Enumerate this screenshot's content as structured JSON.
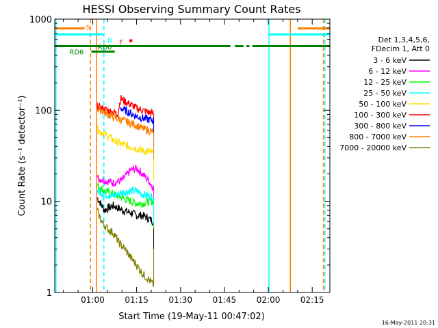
{
  "chart_data": {
    "type": "line",
    "title": "HESSI Observing Summary Count Rates",
    "xlabel": "Start Time (19-May-11 00:47:02)",
    "ylabel": "Count Rate (s⁻¹ detector⁻¹)",
    "yscale": "log",
    "ylim": [
      1,
      1000
    ],
    "xlim_minutes": [
      0,
      94
    ],
    "x_ticks": [
      {
        "label": "01:00",
        "minute": 12.97
      },
      {
        "label": "01:15",
        "minute": 27.97
      },
      {
        "label": "01:30",
        "minute": 42.97
      },
      {
        "label": "01:45",
        "minute": 57.97
      },
      {
        "label": "02:00",
        "minute": 72.97
      },
      {
        "label": "02:15",
        "minute": 87.97
      }
    ],
    "y_ticks": [
      {
        "label": "1",
        "value": 1
      },
      {
        "label": "10",
        "value": 10
      },
      {
        "label": "100",
        "value": 100
      },
      {
        "label": "1000",
        "value": 1000
      }
    ],
    "legend_title": [
      "Det 1,3,4,5,6,",
      "FDecim 1, Att 0"
    ],
    "legend_position": "right",
    "series": [
      {
        "name": "3 - 6 keV",
        "color": "#000000",
        "points": [
          [
            14.5,
            11
          ],
          [
            17,
            8
          ],
          [
            20,
            9
          ],
          [
            23,
            8
          ],
          [
            26,
            7.5
          ],
          [
            28,
            7
          ],
          [
            30,
            7
          ],
          [
            32,
            6.5
          ],
          [
            33.8,
            6
          ]
        ]
      },
      {
        "name": "6 - 12 keV",
        "color": "#ff00ff",
        "points": [
          [
            14.5,
            18
          ],
          [
            17,
            17
          ],
          [
            20,
            16
          ],
          [
            23,
            17
          ],
          [
            26,
            22
          ],
          [
            28,
            23
          ],
          [
            30,
            20
          ],
          [
            32,
            17
          ],
          [
            33.8,
            14
          ]
        ]
      },
      {
        "name": "12 - 25 keV",
        "color": "#00ff00",
        "points": [
          [
            14.5,
            15
          ],
          [
            17,
            13
          ],
          [
            20,
            12
          ],
          [
            23,
            11
          ],
          [
            26,
            10
          ],
          [
            28,
            9.5
          ],
          [
            30,
            9.5
          ],
          [
            32,
            10
          ],
          [
            33.8,
            10
          ]
        ]
      },
      {
        "name": "25 - 50 keV",
        "color": "#00ffff",
        "points": [
          [
            14.5,
            13
          ],
          [
            17,
            12
          ],
          [
            20,
            11.5
          ],
          [
            23,
            12.5
          ],
          [
            26,
            13
          ],
          [
            28,
            13
          ],
          [
            30,
            12
          ],
          [
            32,
            11.5
          ],
          [
            33.8,
            11
          ]
        ]
      },
      {
        "name": "50 - 100 keV",
        "color": "#ffdd00",
        "points": [
          [
            14.5,
            62
          ],
          [
            17,
            55
          ],
          [
            20,
            47
          ],
          [
            23,
            42
          ],
          [
            26,
            40
          ],
          [
            28,
            38
          ],
          [
            30,
            36
          ],
          [
            32,
            35
          ],
          [
            33.8,
            34
          ]
        ]
      },
      {
        "name": "100 - 300 keV",
        "color": "#ff0000",
        "points": [
          [
            14.5,
            110
          ],
          [
            17,
            102
          ],
          [
            20,
            95
          ],
          [
            21.5,
            92
          ],
          [
            22.5,
            135
          ],
          [
            24,
            125
          ],
          [
            26,
            115
          ],
          [
            28,
            105
          ],
          [
            30,
            100
          ],
          [
            32,
            95
          ],
          [
            33.8,
            92
          ]
        ]
      },
      {
        "name": "300 - 800 keV",
        "color": "#0000ff",
        "points": [
          [
            22.5,
            105
          ],
          [
            24,
            100
          ],
          [
            26,
            92
          ],
          [
            28,
            86
          ],
          [
            30,
            82
          ],
          [
            32,
            79
          ],
          [
            33.8,
            77
          ]
        ]
      },
      {
        "name": "800 - 7000 keV",
        "color": "#ff7f00",
        "points": [
          [
            14.5,
            105
          ],
          [
            17,
            95
          ],
          [
            20,
            84
          ],
          [
            23,
            78
          ],
          [
            26,
            72
          ],
          [
            28,
            68
          ],
          [
            30,
            63
          ],
          [
            32,
            60
          ],
          [
            33.8,
            58
          ]
        ]
      },
      {
        "name": "7000 - 20000 keV",
        "color": "#808000",
        "points": [
          [
            14.5,
            8
          ],
          [
            16,
            6
          ],
          [
            18,
            5
          ],
          [
            20,
            4.5
          ],
          [
            22,
            3.5
          ],
          [
            24,
            3
          ],
          [
            26,
            2.4
          ],
          [
            28,
            2
          ],
          [
            30,
            1.6
          ],
          [
            32,
            1.4
          ],
          [
            33.8,
            1.2
          ]
        ]
      }
    ],
    "flags": [
      {
        "label": "S",
        "color": "#ff7f00",
        "y_value": 790,
        "segments": [
          [
            0,
            10.2
          ],
          [
            83,
            94
          ]
        ]
      },
      {
        "label": "N",
        "color": "#00ffff",
        "y_value": 680,
        "segments": [
          [
            0,
            16.5
          ],
          [
            73.2,
            94
          ]
        ]
      },
      {
        "label": "F",
        "color": "#ff0000",
        "y_value": 580,
        "segments": [
          [
            25.5,
            26.5
          ]
        ]
      },
      {
        "label": "RD0",
        "color": "#008000",
        "y_value": 505,
        "segments": [
          [
            0,
            60
          ],
          [
            61.5,
            64.5
          ],
          [
            65.5,
            66.5
          ],
          [
            67.5,
            94
          ]
        ]
      },
      {
        "label": "RD6",
        "color": "#008000",
        "y_value": 440,
        "segments": [
          [
            12.5,
            20.5
          ]
        ]
      }
    ],
    "vertical_markers": [
      {
        "color": "#00ffff",
        "style": "solid",
        "minute": 0.4
      },
      {
        "color": "#ff7f00",
        "style": "dashed",
        "minute": 12.2
      },
      {
        "color": "#ff7f00",
        "style": "solid",
        "minute": 14.3
      },
      {
        "color": "#00ffff",
        "style": "dashed",
        "minute": 16.8
      },
      {
        "color": "#00ffff",
        "style": "solid",
        "minute": 73.2
      },
      {
        "color": "#ff7f00",
        "style": "solid",
        "minute": 80.5
      },
      {
        "color": "#ff7f00",
        "style": "dashed",
        "minute": 91.8
      },
      {
        "color": "#00ffff",
        "style": "dashed",
        "minute": 92.3
      }
    ]
  },
  "footer": {
    "timestamp": "16-May-2011 20:31"
  }
}
